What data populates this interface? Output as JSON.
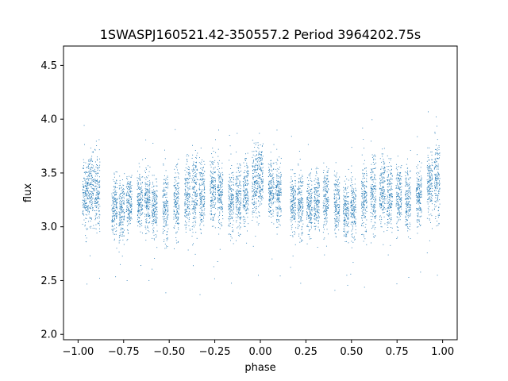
{
  "chart_data": {
    "type": "scatter",
    "title": "1SWASPJ160521.42-350557.2 Period 3964202.75s",
    "xlabel": "phase",
    "ylabel": "flux",
    "xlim": [
      -1.08,
      1.08
    ],
    "ylim": [
      1.95,
      4.68
    ],
    "x_ticks": [
      -1.0,
      -0.75,
      -0.5,
      -0.25,
      0.0,
      0.25,
      0.5,
      0.75,
      1.0
    ],
    "x_tick_labels": [
      "−1.00",
      "−0.75",
      "−0.50",
      "−0.25",
      "0.00",
      "0.25",
      "0.50",
      "0.75",
      "1.00"
    ],
    "y_ticks": [
      2.0,
      2.5,
      3.0,
      3.5,
      4.0,
      4.5
    ],
    "y_tick_labels": [
      "2.0",
      "2.5",
      "3.0",
      "3.5",
      "4.0",
      "4.5"
    ],
    "grid": false,
    "marker_color": "#1f77b4",
    "series": [
      {
        "name": "",
        "columns": [
          {
            "phase": -0.96,
            "center": 3.28,
            "spread": 0.28
          },
          {
            "phase": -0.93,
            "center": 3.35,
            "spread": 0.3
          },
          {
            "phase": -0.895,
            "center": 3.33,
            "spread": 0.32
          },
          {
            "phase": -0.8,
            "center": 3.2,
            "spread": 0.26
          },
          {
            "phase": -0.76,
            "center": 3.15,
            "spread": 0.25
          },
          {
            "phase": -0.72,
            "center": 3.22,
            "spread": 0.24
          },
          {
            "phase": -0.66,
            "center": 3.24,
            "spread": 0.25
          },
          {
            "phase": -0.62,
            "center": 3.25,
            "spread": 0.27
          },
          {
            "phase": -0.58,
            "center": 3.18,
            "spread": 0.25
          },
          {
            "phase": -0.52,
            "center": 3.17,
            "spread": 0.27
          },
          {
            "phase": -0.46,
            "center": 3.25,
            "spread": 0.3
          },
          {
            "phase": -0.4,
            "center": 3.3,
            "spread": 0.3
          },
          {
            "phase": -0.36,
            "center": 3.32,
            "spread": 0.34
          },
          {
            "phase": -0.32,
            "center": 3.3,
            "spread": 0.31
          },
          {
            "phase": -0.26,
            "center": 3.35,
            "spread": 0.3
          },
          {
            "phase": -0.22,
            "center": 3.32,
            "spread": 0.28
          },
          {
            "phase": -0.16,
            "center": 3.23,
            "spread": 0.26
          },
          {
            "phase": -0.12,
            "center": 3.28,
            "spread": 0.27
          },
          {
            "phase": -0.08,
            "center": 3.33,
            "spread": 0.28
          },
          {
            "phase": -0.03,
            "center": 3.42,
            "spread": 0.3
          },
          {
            "phase": 0.0,
            "center": 3.45,
            "spread": 0.3
          },
          {
            "phase": 0.06,
            "center": 3.35,
            "spread": 0.27
          },
          {
            "phase": 0.1,
            "center": 3.32,
            "spread": 0.28
          },
          {
            "phase": 0.18,
            "center": 3.22,
            "spread": 0.26
          },
          {
            "phase": 0.22,
            "center": 3.2,
            "spread": 0.25
          },
          {
            "phase": 0.27,
            "center": 3.22,
            "spread": 0.25
          },
          {
            "phase": 0.31,
            "center": 3.24,
            "spread": 0.25
          },
          {
            "phase": 0.36,
            "center": 3.26,
            "spread": 0.26
          },
          {
            "phase": 0.42,
            "center": 3.22,
            "spread": 0.27
          },
          {
            "phase": 0.47,
            "center": 3.15,
            "spread": 0.25
          },
          {
            "phase": 0.51,
            "center": 3.18,
            "spread": 0.27
          },
          {
            "phase": 0.57,
            "center": 3.25,
            "spread": 0.28
          },
          {
            "phase": 0.62,
            "center": 3.32,
            "spread": 0.31
          },
          {
            "phase": 0.67,
            "center": 3.35,
            "spread": 0.3
          },
          {
            "phase": 0.71,
            "center": 3.3,
            "spread": 0.28
          },
          {
            "phase": 0.76,
            "center": 3.28,
            "spread": 0.27
          },
          {
            "phase": 0.81,
            "center": 3.25,
            "spread": 0.3
          },
          {
            "phase": 0.87,
            "center": 3.3,
            "spread": 0.26
          },
          {
            "phase": 0.93,
            "center": 3.4,
            "spread": 0.28
          },
          {
            "phase": 0.97,
            "center": 3.42,
            "spread": 0.3
          }
        ]
      }
    ]
  }
}
